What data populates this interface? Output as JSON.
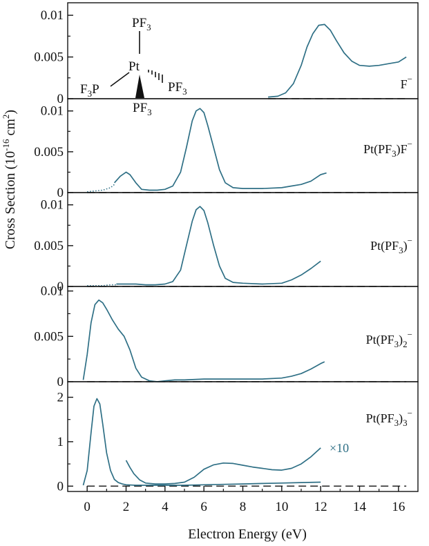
{
  "chart_data": {
    "type": "line",
    "xlabel": "Electron Energy (eV)",
    "ylabel": "Cross Section (10^-16 cm^2)",
    "ylabel_parts": {
      "main": "Cross Section (10",
      "exp": "-16",
      "mid": " cm",
      "exp2": "2",
      "end": ")"
    },
    "xlim": [
      -1,
      17
    ],
    "xticks": [
      0,
      2,
      4,
      6,
      8,
      10,
      12,
      14,
      16
    ],
    "colors": {
      "curve": "#2e6f85",
      "axis": "#111111",
      "baseline": "#222222",
      "scale_note": "#2e6f85"
    },
    "molecule": {
      "top": "PF",
      "left": "F",
      "left2": "P",
      "center": "Pt",
      "right": "PF",
      "bottom": "PF",
      "sub": "3"
    },
    "panels": [
      {
        "label": "F⁻",
        "label_parts": {
          "pre": "F",
          "sup": "−"
        },
        "ylim": [
          0,
          0.0115
        ],
        "yticks": [
          0,
          0.005,
          0.01
        ],
        "ytick_labels": [
          "0",
          "0.005",
          "0.01"
        ],
        "baseline_x": [
          9.3,
          16.4
        ],
        "series": [
          {
            "name": "F−",
            "x": [
              9.3,
              9.8,
              10.2,
              10.6,
              11.0,
              11.3,
              11.6,
              11.9,
              12.2,
              12.5,
              12.8,
              13.2,
              13.6,
              14.0,
              14.5,
              15.0,
              15.5,
              16.0,
              16.4
            ],
            "y": [
              0.0002,
              0.0003,
              0.0007,
              0.0018,
              0.004,
              0.0062,
              0.0078,
              0.0088,
              0.0089,
              0.0082,
              0.007,
              0.0055,
              0.0045,
              0.004,
              0.0039,
              0.004,
              0.0042,
              0.0044,
              0.005
            ]
          }
        ]
      },
      {
        "label": "Pt(PF₃)F⁻",
        "label_parts": {
          "pre": "Pt(PF",
          "sub": "3",
          "post": ")F",
          "sup": "−"
        },
        "ylim": [
          0,
          0.0115
        ],
        "yticks": [
          0,
          0.005,
          0.01
        ],
        "ytick_labels": [
          "0",
          "0.005",
          "0.01"
        ],
        "baseline_x": [
          0,
          16.4
        ],
        "dotted": {
          "x": [
            0.0,
            0.4,
            0.8,
            1.2,
            1.4
          ],
          "y": [
            0.0001,
            0.0002,
            0.0003,
            0.0006,
            0.001
          ]
        },
        "series": [
          {
            "name": "Pt(PF3)F−",
            "x": [
              1.4,
              1.7,
              2.0,
              2.2,
              2.5,
              2.8,
              3.2,
              3.6,
              4.0,
              4.4,
              4.8,
              5.1,
              5.4,
              5.6,
              5.8,
              6.0,
              6.2,
              6.5,
              6.8,
              7.1,
              7.5,
              8.0,
              9.0,
              10.0,
              10.5,
              11.0,
              11.5,
              12.0,
              12.3
            ],
            "y": [
              0.0012,
              0.002,
              0.0025,
              0.0022,
              0.0012,
              0.0004,
              0.0003,
              0.0003,
              0.0004,
              0.0008,
              0.0025,
              0.0055,
              0.0088,
              0.01,
              0.0103,
              0.0098,
              0.0082,
              0.0055,
              0.0028,
              0.0012,
              0.0006,
              0.0005,
              0.0005,
              0.0006,
              0.0008,
              0.001,
              0.0014,
              0.0022,
              0.0024
            ]
          }
        ]
      },
      {
        "label": "Pt(PF₃)⁻",
        "label_parts": {
          "pre": "Pt(PF",
          "sub": "3",
          "post": ")",
          "sup": "−"
        },
        "ylim": [
          0,
          0.0115
        ],
        "yticks": [
          0,
          0.005,
          0.01
        ],
        "ytick_labels": [
          "0",
          "0.005",
          "0.01"
        ],
        "baseline_x": [
          0,
          16.4
        ],
        "dotted": {
          "x": [
            0.0,
            0.4,
            0.8,
            1.2,
            1.5
          ],
          "y": [
            0.0001,
            0.0001,
            0.0001,
            0.0002,
            0.0002
          ]
        },
        "series": [
          {
            "name": "Pt(PF3)−",
            "x": [
              1.5,
              2.0,
              2.5,
              3.0,
              3.5,
              4.0,
              4.4,
              4.8,
              5.1,
              5.4,
              5.6,
              5.8,
              6.0,
              6.2,
              6.5,
              6.8,
              7.1,
              7.5,
              8.0,
              9.0,
              10.0,
              10.5,
              11.0,
              11.5,
              12.0
            ],
            "y": [
              0.0003,
              0.0003,
              0.0003,
              0.0002,
              0.0002,
              0.0003,
              0.0006,
              0.002,
              0.005,
              0.008,
              0.0094,
              0.0098,
              0.0093,
              0.0078,
              0.005,
              0.0025,
              0.001,
              0.0005,
              0.0004,
              0.0003,
              0.0004,
              0.0008,
              0.0014,
              0.0022,
              0.0031
            ]
          }
        ]
      },
      {
        "label": "Pt(PF₃)₂⁻",
        "label_parts": {
          "pre": "Pt(PF",
          "sub": "3",
          "post": ")",
          "sub2": "2",
          "sup": "−"
        },
        "ylim": [
          0,
          0.0105
        ],
        "yticks": [
          0,
          0.005,
          0.01
        ],
        "ytick_labels": [
          "0",
          "0.005",
          "0.01"
        ],
        "baseline_x": [
          0,
          16.4
        ],
        "series": [
          {
            "name": "Pt(PF3)2−",
            "x": [
              -0.2,
              0.0,
              0.2,
              0.4,
              0.6,
              0.8,
              1.0,
              1.3,
              1.6,
              1.9,
              2.2,
              2.5,
              2.8,
              3.2,
              3.6,
              4.0,
              4.5,
              5.0,
              6.0,
              7.0,
              8.0,
              9.0,
              10.0,
              10.5,
              11.0,
              11.5,
              12.0,
              12.2
            ],
            "y": [
              0.0002,
              0.003,
              0.0065,
              0.0085,
              0.009,
              0.0087,
              0.008,
              0.0068,
              0.0058,
              0.005,
              0.0035,
              0.0015,
              0.0005,
              0.0001,
              0.0,
              0.0001,
              0.0002,
              0.0002,
              0.0003,
              0.0003,
              0.0003,
              0.0003,
              0.0004,
              0.0006,
              0.0009,
              0.0014,
              0.002,
              0.0022
            ]
          }
        ]
      },
      {
        "label": "Pt(PF₃)₃⁻",
        "label_parts": {
          "pre": "Pt(PF",
          "sub": "3",
          "post": ")",
          "sub2": "3",
          "sup": "−"
        },
        "ylim": [
          -0.12,
          2.35
        ],
        "yticks": [
          0,
          1,
          2
        ],
        "ytick_labels": [
          "0",
          "1",
          "2"
        ],
        "baseline_x": [
          0,
          16.4
        ],
        "scale_note": "×10",
        "series": [
          {
            "name": "Pt(PF3)3−",
            "x": [
              -0.2,
              0.0,
              0.2,
              0.35,
              0.5,
              0.65,
              0.8,
              1.0,
              1.2,
              1.4,
              1.6,
              1.8,
              2.0,
              2.5,
              3.0,
              4.0,
              5.0,
              6.0,
              7.0,
              8.0,
              9.0,
              10.0,
              11.0,
              12.0
            ],
            "y": [
              0.02,
              0.35,
              1.2,
              1.8,
              1.97,
              1.85,
              1.4,
              0.75,
              0.35,
              0.15,
              0.08,
              0.05,
              0.03,
              0.02,
              0.02,
              0.02,
              0.02,
              0.03,
              0.04,
              0.05,
              0.06,
              0.07,
              0.08,
              0.09
            ]
          },
          {
            "name": "×10",
            "x": [
              2.0,
              2.2,
              2.4,
              2.7,
              3.0,
              3.5,
              4.0,
              4.5,
              5.0,
              5.5,
              6.0,
              6.5,
              7.0,
              7.5,
              8.0,
              8.5,
              9.0,
              9.5,
              10.0,
              10.5,
              11.0,
              11.5,
              12.0
            ],
            "y": [
              0.58,
              0.42,
              0.28,
              0.14,
              0.07,
              0.05,
              0.05,
              0.06,
              0.09,
              0.2,
              0.38,
              0.48,
              0.52,
              0.51,
              0.47,
              0.43,
              0.4,
              0.37,
              0.36,
              0.4,
              0.5,
              0.66,
              0.86
            ]
          }
        ]
      }
    ]
  }
}
